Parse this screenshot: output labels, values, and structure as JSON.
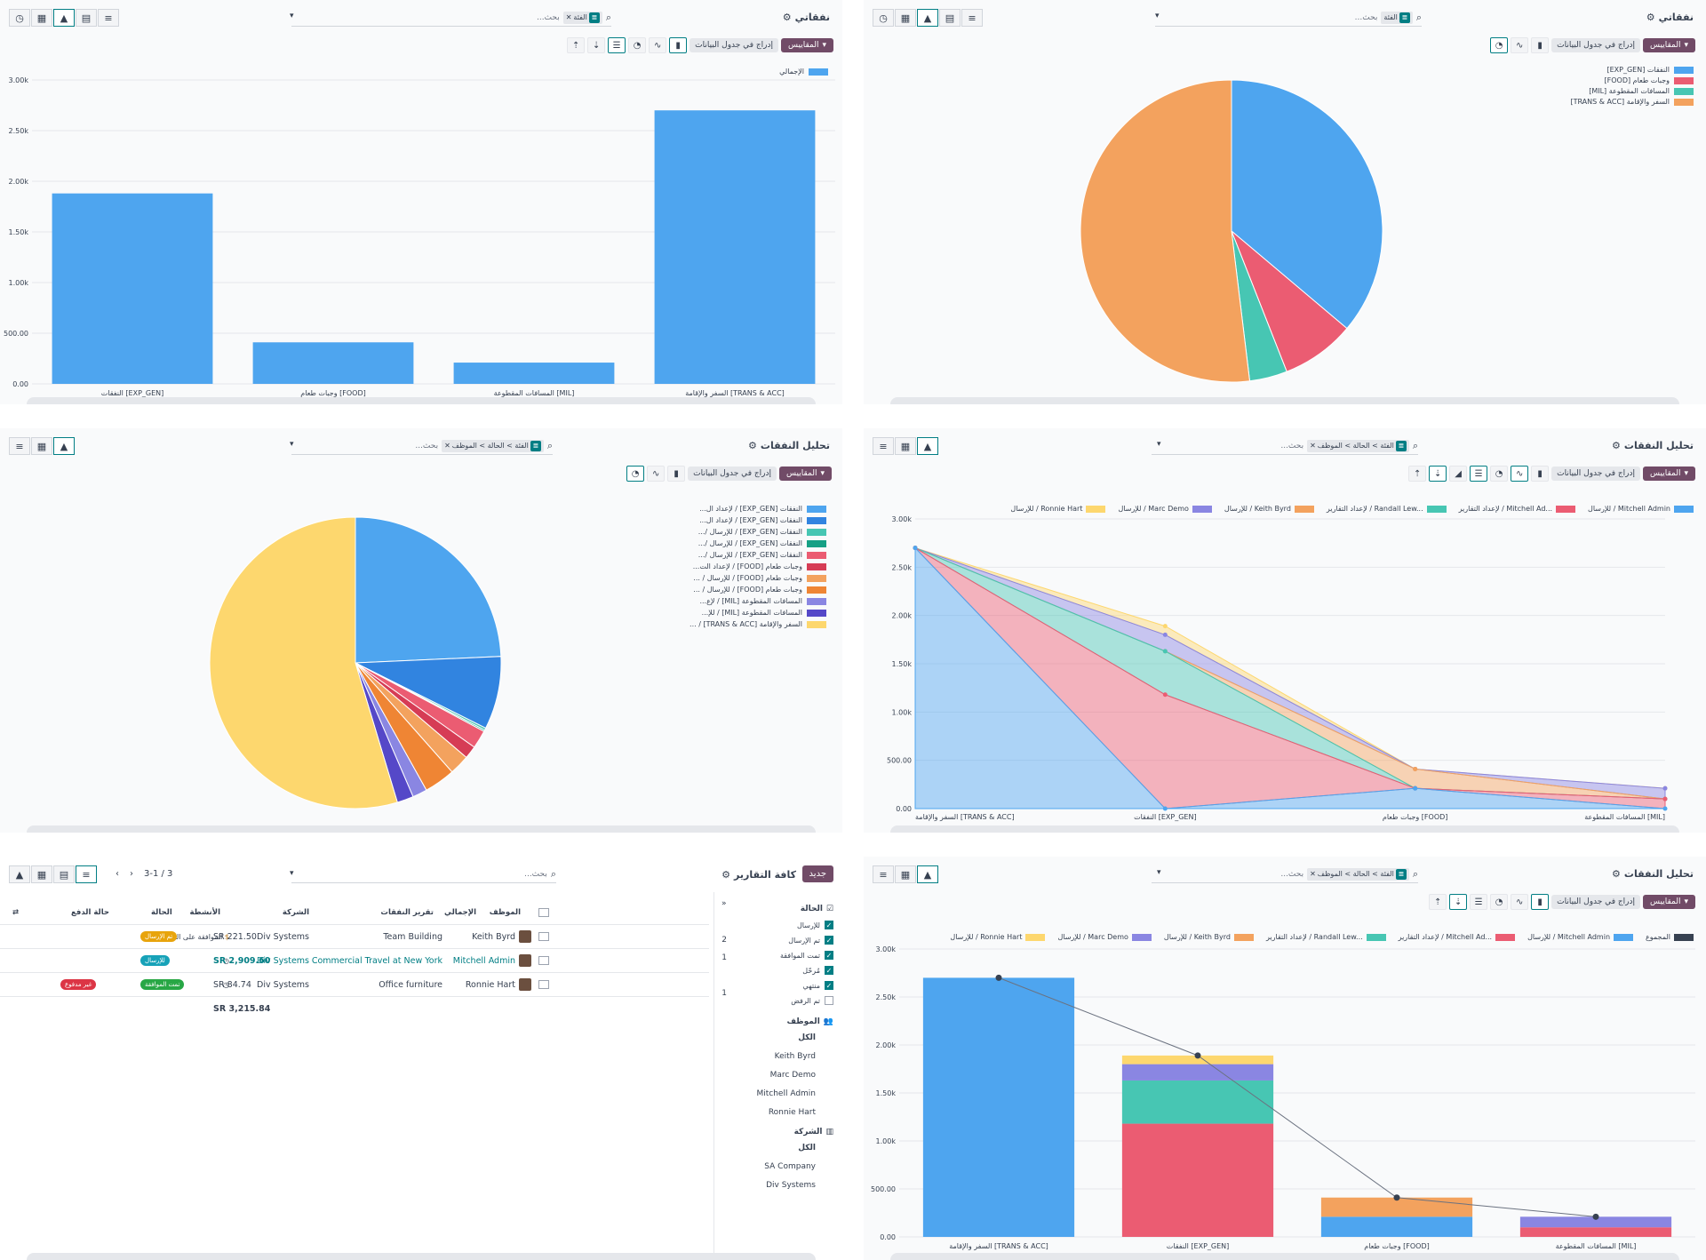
{
  "p1": {
    "title": "نفقاتي",
    "facet": "الفئة",
    "search_ph": "بحث...",
    "measures": "المقاييس",
    "insert": "إدراج في جدول البيانات",
    "legend": "الإجمالي"
  },
  "p2": {
    "title": "نفقاتي",
    "facet": "الفئة",
    "search_ph": "بحث...",
    "measures": "المقاييس",
    "insert": "إدراج في جدول البيانات"
  },
  "p3": {
    "title": "تحليل النفقات",
    "facet": "الفئة > الحالة > الموظف",
    "search_ph": "بحث...",
    "measures": "المقاييس",
    "insert": "إدراج في جدول البيانات"
  },
  "p4": {
    "title": "تحليل النفقات",
    "facet": "الفئة > الحالة > الموظف",
    "search_ph": "بحث...",
    "measures": "المقاييس",
    "insert": "إدراج في جدول البيانات"
  },
  "p6": {
    "title": "تحليل النفقات",
    "facet": "الفئة > الحالة > الموظف",
    "search_ph": "بحث...",
    "measures": "المقاييس",
    "insert": "إدراج في جدول البيانات"
  },
  "p5": {
    "new_btn": "جديد",
    "title": "كافة التقارير",
    "search_ph": "بحث...",
    "pager": "3-1 / 3",
    "side": {
      "status_hdr": "الحالة",
      "status": [
        {
          "label": "للإرسال",
          "on": true
        },
        {
          "label": "تم الإرسال",
          "on": true
        },
        {
          "label": "تمت الموافقة",
          "on": true
        },
        {
          "label": "مُرحّل",
          "on": true
        },
        {
          "label": "منتهي",
          "on": true
        },
        {
          "label": "تم الرفض",
          "on": false
        }
      ],
      "emp_hdr": "الموظف",
      "emps": [
        "الكل",
        "Keith Byrd",
        "Marc Demo",
        "Mitchell Admin",
        "Ronnie Hart"
      ],
      "co_hdr": "الشركة",
      "cos": [
        "الكل",
        "SA Company",
        "Div Systems"
      ],
      "counts": [
        "2",
        "1",
        "",
        "1"
      ]
    },
    "cols": {
      "employee": "الموظف",
      "report": "تقرير النفقات",
      "company": "الشركة",
      "activities": "الأنشطة",
      "total": "الإجمالي",
      "state": "الحالة",
      "pay": "حالة الدفع"
    },
    "rows": [
      {
        "employee": "Keith Byrd",
        "report": "Team Building",
        "company": "Div Systems",
        "activity": "الموافقة على النفقة",
        "total": "221.50 SR",
        "state": "تم الإرسال",
        "pay": ""
      },
      {
        "employee": "Mitchell Admin",
        "report": "Commercial Travel at New York",
        "company": "Div Systems",
        "activity": "",
        "total": "2,909.60 SR",
        "state": "للإرسال",
        "pay": ""
      },
      {
        "employee": "Ronnie Hart",
        "report": "Office furniture",
        "company": "Div Systems",
        "activity": "",
        "total": "84.74 SR",
        "state": "تمت الموافقة",
        "pay": "غير مدفوع"
      }
    ],
    "sum": "3,215.84 SR"
  },
  "colors": {
    "blue": "#4ea5ef",
    "red": "#eb5c72",
    "teal": "#47c6b3",
    "orange": "#f3a25e",
    "purple": "#8a86e2",
    "yellow": "#fdd76e",
    "dark": "#374151"
  },
  "chart_data": [
    {
      "type": "bar",
      "categories": [
        "النفقات [EXP_GEN]",
        "وجبات طعام [FOOD]",
        "المسافات المقطوعة [MIL]",
        "السفر والإقامة [TRANS & ACC]"
      ],
      "series": [
        {
          "name": "الإجمالي",
          "values": [
            1880,
            410,
            210,
            2700
          ]
        }
      ],
      "ylim": [
        0,
        3000
      ],
      "yticks": [
        "0.00",
        "500.00",
        "1.00k",
        "1.50k",
        "2.00k",
        "2.50k",
        "3.00k"
      ]
    },
    {
      "type": "pie",
      "labels": [
        "النفقات [EXP_GEN]",
        "وجبات طعام [FOOD]",
        "المسافات المقطوعة [MIL]",
        "السفر والإقامة [TRANS & ACC]"
      ],
      "values": [
        1880,
        410,
        210,
        2700
      ]
    },
    {
      "type": "pie",
      "labels": [
        "النفقات [EXP_GEN] / لإعداد ال...",
        "النفقات [EXP_GEN] / لإعداد ال...",
        "النفقات [EXP_GEN] / للإرسال /...",
        "النفقات [EXP_GEN] / للإرسال /...",
        "النفقات [EXP_GEN] / للإرسال /...",
        "وجبات طعام [FOOD] / لإعداد الت...",
        "وجبات طعام [FOOD] / للإرسال / ...",
        "وجبات طعام [FOOD] / للإرسال / ...",
        "المسافات المقطوعة [MIL] / لإع...",
        "المسافات المقطوعة [MIL] / للإ...",
        "السفر والإقامة [TRANS & ACC] / ..."
      ],
      "values": [
        1200,
        400,
        12,
        8,
        100,
        70,
        110,
        170,
        80,
        90,
        2700
      ]
    },
    {
      "type": "area",
      "categories": [
        "السفر والإقامة [TRANS & ACC]",
        "النفقات [EXP_GEN]",
        "وجبات طعام [FOOD]",
        "المسافات المقطوعة [MIL]"
      ],
      "series": [
        {
          "name": "للإرسال / Mitchell Admin",
          "values": [
            2700,
            0,
            210,
            0
          ]
        },
        {
          "name": "لإعداد التقارير / Mitchell Ad...",
          "values": [
            0,
            1180,
            0,
            100
          ]
        },
        {
          "name": "لإعداد التقارير / Randall Lew...",
          "values": [
            0,
            450,
            0,
            0
          ]
        },
        {
          "name": "للإرسال / Keith Byrd",
          "values": [
            0,
            0,
            200,
            0
          ]
        },
        {
          "name": "للإرسال / Marc Demo",
          "values": [
            0,
            170,
            0,
            110
          ]
        },
        {
          "name": "للإرسال / Ronnie Hart",
          "values": [
            0,
            90,
            0,
            0
          ]
        }
      ],
      "ylim": [
        0,
        3000
      ],
      "yticks": [
        "0.00",
        "500.00",
        "1.00k",
        "1.50k",
        "2.00k",
        "2.50k",
        "3.00k"
      ]
    },
    {
      "type": "bar",
      "stacked": true,
      "categories": [
        "السفر والإقامة [TRANS & ACC]",
        "النفقات [EXP_GEN]",
        "وجبات طعام [FOOD]",
        "المسافات المقطوعة [MIL]"
      ],
      "series": [
        {
          "name": "للإرسال / Mitchell Admin",
          "values": [
            2700,
            0,
            210,
            0
          ]
        },
        {
          "name": "لإعداد التقارير / Mitchell Ad...",
          "values": [
            0,
            1180,
            0,
            100
          ]
        },
        {
          "name": "لإعداد التقارير / Randall Lew...",
          "values": [
            0,
            450,
            0,
            0
          ]
        },
        {
          "name": "للإرسال / Keith Byrd",
          "values": [
            0,
            0,
            200,
            0
          ]
        },
        {
          "name": "للإرسال / Marc Demo",
          "values": [
            0,
            170,
            0,
            110
          ]
        },
        {
          "name": "للإرسال / Ronnie Hart",
          "values": [
            0,
            90,
            0,
            0
          ]
        }
      ],
      "cumulative": {
        "name": "المجموع",
        "values": [
          2700,
          1890,
          410,
          210
        ]
      },
      "ylim": [
        0,
        3000
      ],
      "yticks": [
        "0.00",
        "500.00",
        "1.00k",
        "1.50k",
        "2.00k",
        "2.50k",
        "3.00k"
      ]
    }
  ]
}
